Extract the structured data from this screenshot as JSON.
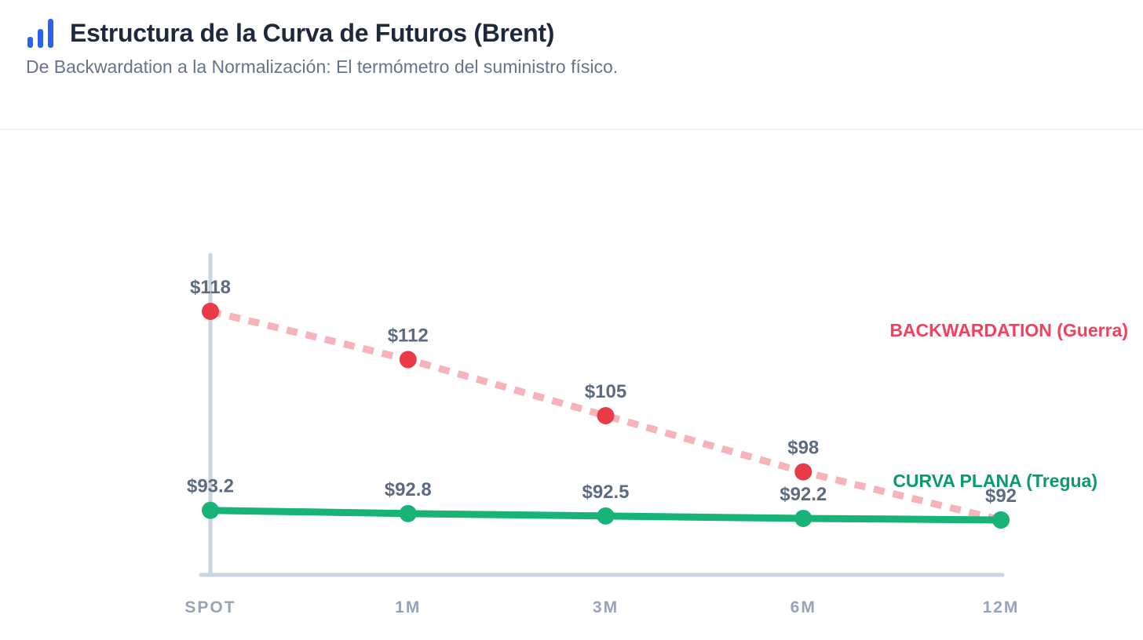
{
  "header": {
    "title": "Estructura de la Curva de Futuros (Brent)",
    "subtitle": "De Backwardation a la Normalización: El termómetro del suministro físico.",
    "icon": "bar-chart-icon"
  },
  "colors": {
    "accent_blue": "#2b63f0",
    "title_text": "#1e2a3b",
    "subtitle_text": "#64748b",
    "axis": "#cbd5e1",
    "tick_label": "#97a4b8",
    "value_label": "#5d6b81",
    "red_point": "#e93a47",
    "red_dash": "#f6b3b9",
    "red_series_label": "#f43f5e",
    "green_line": "#17b377",
    "green_series_label": "#0b9b66"
  },
  "chart_data": {
    "type": "line",
    "categories": [
      "SPOT",
      "1M",
      "3M",
      "6M",
      "12M"
    ],
    "series": [
      {
        "name": "BACKWARDATION (Guerra)",
        "values": [
          118,
          112,
          105,
          98,
          92
        ],
        "point_labels": [
          "$118",
          "$112",
          "$105",
          "$98",
          null
        ],
        "style": "dashed",
        "point_color": "#e93a47",
        "line_color": "#f6b3b9",
        "label_color": "#f43f5e"
      },
      {
        "name": "CURVA PLANA (Tregua)",
        "values": [
          93.2,
          92.8,
          92.5,
          92.2,
          92
        ],
        "point_labels": [
          "$93.2",
          "$92.8",
          "$92.5",
          "$92.2",
          "$92"
        ],
        "style": "solid",
        "point_color": "#17b377",
        "line_color": "#17b377",
        "label_color": "#0b9b66"
      }
    ],
    "title": "Estructura de la Curva de Futuros (Brent)",
    "xlabel": "",
    "ylabel": "",
    "ylim": [
      85,
      125
    ],
    "grid": false,
    "legend_position": "inline-right-of-lines"
  }
}
